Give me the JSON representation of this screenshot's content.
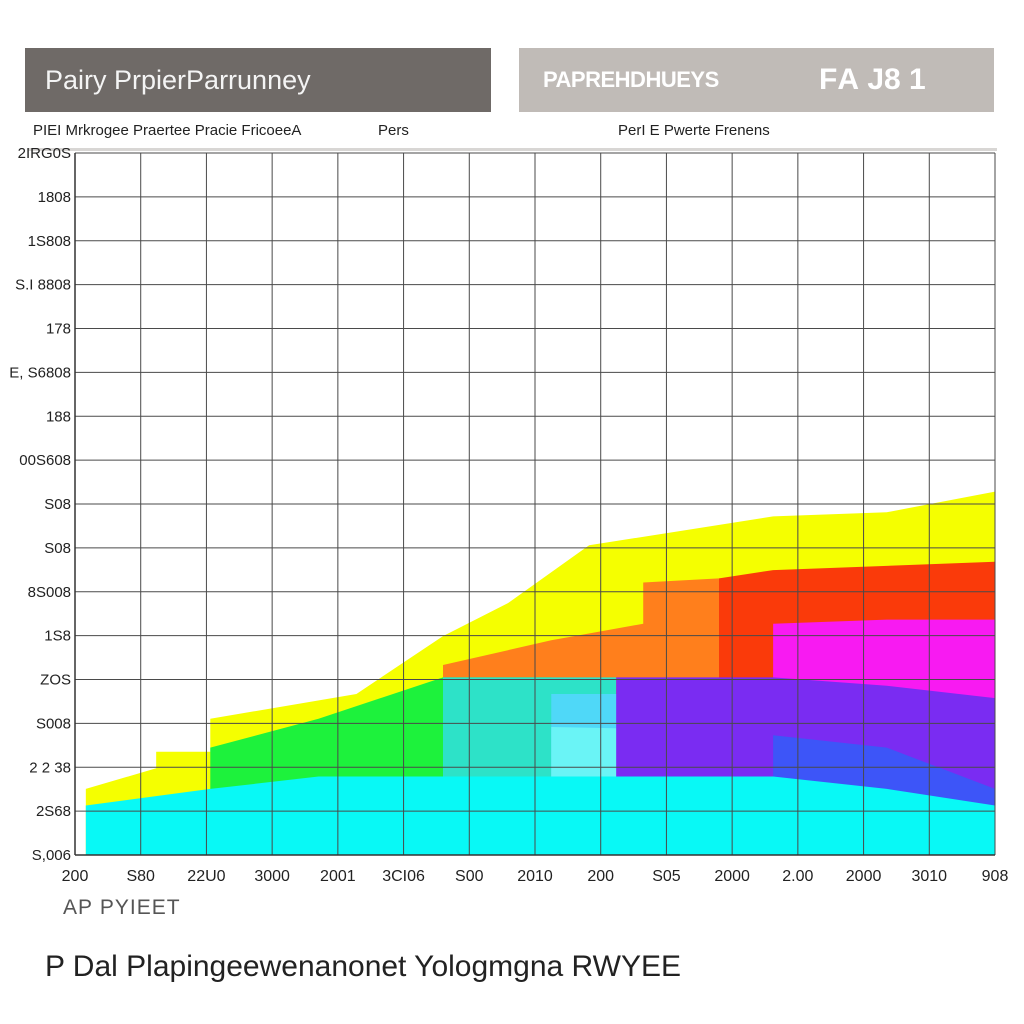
{
  "header": {
    "title": "Pairy PrpierParrunney",
    "subtitle": "PAPREHDHUEYS",
    "code": "FА J8 1"
  },
  "sub_labels": {
    "left": "PIЕI Mrkrogee  Praertee  Pracie  FricoeeА",
    "middle": "Pers",
    "right": "PerI E Pwerte  Frenens"
  },
  "chart_data": {
    "type": "area",
    "x_label": "AР PYIEET",
    "caption": "P Dal Plapingeewenanonet Yologmgna RWYEE",
    "y_ticks": [
      "2IRG0S",
      "1808",
      "1S808",
      "S.I 8808",
      "178",
      "E, S6808",
      "188",
      "00S608",
      "S08",
      "S08",
      "8S008",
      "1S8",
      "ZOS",
      "S008",
      "2 2 38",
      "2S68",
      "S,006"
    ],
    "x_ticks": [
      "200",
      "S80",
      "22U0",
      "3000",
      "2001",
      "3CI06",
      "S00",
      "2010",
      "200",
      "S05",
      "2000",
      "2.00",
      "2000",
      "3010",
      "908"
    ],
    "x_range": [
      0,
      17
    ],
    "y_range": [
      0,
      17
    ],
    "colors": {
      "yellow": "#f5ff00",
      "red": "#fa3a0a",
      "orange": "#ff7f1c",
      "magenta": "#f81af2",
      "green": "#1df23c",
      "teal": "#2de2c8",
      "light-blue": "#4fd8f8",
      "pale-cyan": "#6af4f6",
      "purple": "#7a2cf2",
      "blue": "#3d55f8",
      "cyan": "#08f9f6"
    },
    "series": [
      {
        "color": "yellow",
        "points": [
          [
            0.2,
            1.6
          ],
          [
            1.5,
            2.1
          ],
          [
            1.5,
            2.5
          ],
          [
            2.5,
            2.5
          ],
          [
            2.5,
            3.3
          ],
          [
            5.2,
            3.9
          ],
          [
            6.8,
            5.3
          ],
          [
            8.0,
            6.1
          ],
          [
            9.5,
            7.5
          ],
          [
            12.9,
            8.2
          ],
          [
            15.0,
            8.3
          ],
          [
            17.0,
            8.8
          ]
        ]
      },
      {
        "color": "red",
        "points": [
          [
            11.9,
            6.7
          ],
          [
            12.9,
            6.9
          ],
          [
            17.0,
            7.1
          ]
        ]
      },
      {
        "color": "orange",
        "points": [
          [
            6.8,
            4.6
          ],
          [
            8.8,
            5.2
          ],
          [
            10.5,
            5.6
          ],
          [
            10.5,
            6.6
          ],
          [
            11.9,
            6.7
          ]
        ]
      },
      {
        "color": "magenta",
        "points": [
          [
            12.9,
            5.6
          ],
          [
            15.0,
            5.7
          ],
          [
            17.0,
            5.7
          ]
        ]
      },
      {
        "color": "green",
        "points": [
          [
            2.5,
            2.6
          ],
          [
            4.5,
            3.3
          ],
          [
            6.8,
            4.3
          ],
          [
            8.8,
            4.3
          ]
        ]
      },
      {
        "color": "teal",
        "points": [
          [
            6.8,
            4.3
          ],
          [
            10.0,
            4.3
          ]
        ]
      },
      {
        "color": "light-blue",
        "points": [
          [
            8.8,
            3.9
          ],
          [
            12.9,
            3.9
          ]
        ]
      },
      {
        "color": "pale-cyan",
        "points": [
          [
            8.8,
            3.1
          ],
          [
            12.9,
            3.0
          ]
        ]
      },
      {
        "color": "purple",
        "points": [
          [
            10.0,
            4.3
          ],
          [
            12.9,
            4.3
          ],
          [
            15.0,
            4.1
          ],
          [
            17.0,
            3.8
          ]
        ]
      },
      {
        "color": "blue",
        "points": [
          [
            12.9,
            2.9
          ],
          [
            15.0,
            2.6
          ],
          [
            17.0,
            1.6
          ]
        ]
      },
      {
        "color": "cyan",
        "points": [
          [
            0.2,
            1.2
          ],
          [
            2.5,
            1.6
          ],
          [
            4.5,
            1.9
          ],
          [
            12.9,
            1.9
          ],
          [
            15.0,
            1.6
          ],
          [
            17.0,
            1.2
          ]
        ]
      }
    ]
  }
}
